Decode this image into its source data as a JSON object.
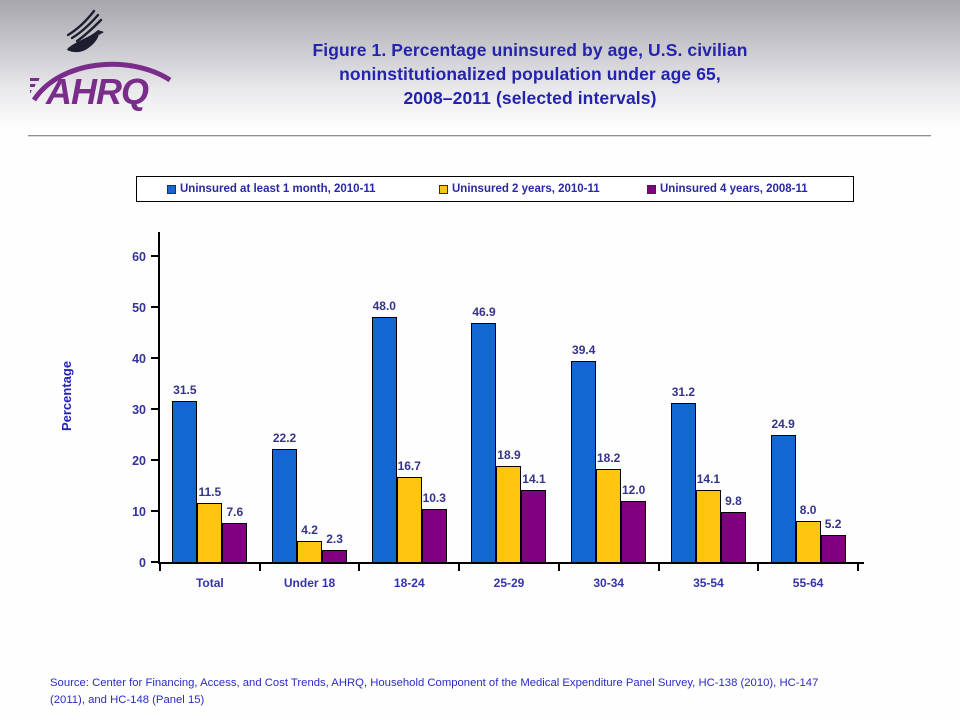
{
  "title": "Figure 1. Percentage uninsured by age, U.S. civilian\nnoninstitutionalized population under age 65,\n2008–2011 (selected intervals)",
  "logo": {
    "org_acronym": "AHRQ"
  },
  "source": "Source: Center for Financing, Access, and Cost Trends, AHRQ, Household Component of the Medical Expenditure Panel Survey, HC-138 (2010), HC-147\n(2011), and HC-148 (Panel 15)",
  "colors": {
    "title_text": "#2323b0",
    "axis_text": "#333399",
    "series_blue": "#1268d0",
    "series_yellow": "#ffc510",
    "series_purple": "#800080",
    "ahrq_purple": "#7a2c8a"
  },
  "chart_data": {
    "type": "bar",
    "title": "Percentage uninsured by age, U.S. civilian noninstitutionalized population under age 65, 2008–2011 (selected intervals)",
    "categories": [
      "Total",
      "Under 18",
      "18-24",
      "25-29",
      "30-34",
      "35-54",
      "55-64"
    ],
    "series": [
      {
        "name": "Uninsured at least 1 month, 2010-11",
        "color": "#1268d0",
        "values": [
          31.5,
          22.2,
          48.0,
          46.9,
          39.4,
          31.2,
          24.9
        ]
      },
      {
        "name": "Uninsured 2 years, 2010-11",
        "color": "#ffc510",
        "values": [
          11.5,
          4.2,
          16.7,
          18.9,
          18.2,
          14.1,
          8.0
        ]
      },
      {
        "name": "Uninsured 4 years, 2008-11",
        "color": "#800080",
        "values": [
          7.6,
          2.3,
          10.3,
          14.1,
          12.0,
          9.8,
          5.2
        ]
      }
    ],
    "xlabel": "",
    "ylabel": "Percentage",
    "ylim": [
      0,
      65
    ],
    "yticks": [
      0,
      10,
      20,
      30,
      40,
      50,
      60
    ],
    "grid": false,
    "legend_position": "top",
    "value_labels": true
  }
}
